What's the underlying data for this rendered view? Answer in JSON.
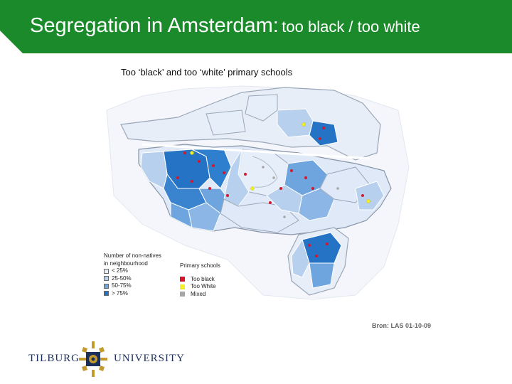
{
  "header": {
    "title_main": "Segregation in Amsterdam:",
    "title_sub": "too black / too white",
    "bar_color": "#1a8a2a"
  },
  "map": {
    "title": "Too ‘black’ and too ‘white’ primary schools"
  },
  "legend_left": {
    "heading_1": "Number of non-natives",
    "heading_2": "in neighbourhood",
    "items": [
      {
        "label": "< 25%",
        "color": "#e6eef9"
      },
      {
        "label": "25-50%",
        "color": "#b7d0ee"
      },
      {
        "label": "50-75%",
        "color": "#6ea5de"
      },
      {
        "label": "> 75%",
        "color": "#2573c4"
      }
    ]
  },
  "legend_right": {
    "heading": "Primary schools",
    "items": [
      {
        "label": "Too black",
        "color": "#d8162a"
      },
      {
        "label": "Too White",
        "color": "#f3ee2a"
      },
      {
        "label": "Mixed",
        "color": "#a6a6a6"
      }
    ]
  },
  "source": "Bron: LAS 01-10-09",
  "logo": {
    "left_text": "TILBURG",
    "right_text": "UNIVERSITY",
    "emblem": "tilburg-emblem-icon"
  }
}
